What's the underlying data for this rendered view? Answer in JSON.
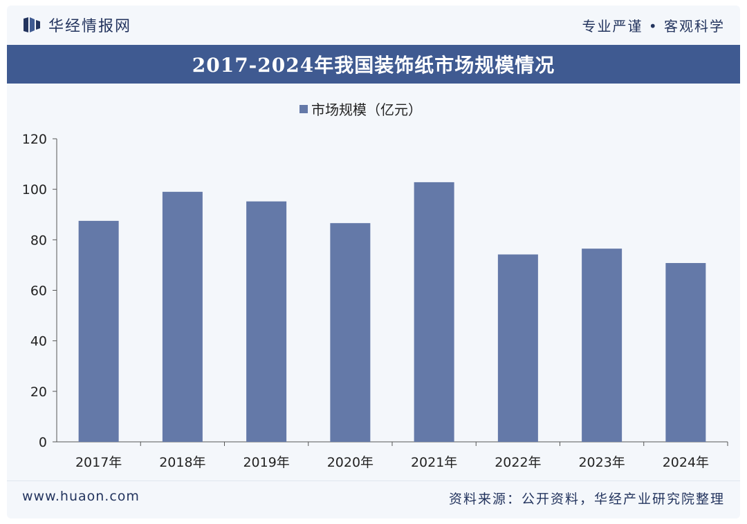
{
  "header": {
    "brand_name": "华经情报网",
    "slogan": "专业严谨 • 客观科学"
  },
  "colors": {
    "bar": "#6479a8",
    "title_band": "#3f5a91",
    "text_dark": "#23345e"
  },
  "chart_data": {
    "type": "bar",
    "title": "2017-2024年我国装饰纸市场规模情况",
    "categories": [
      "2017年",
      "2018年",
      "2019年",
      "2020年",
      "2021年",
      "2022年",
      "2023年",
      "2024年"
    ],
    "series": [
      {
        "name": "市场规模（亿元）",
        "values": [
          87.5,
          99,
          95.2,
          86.6,
          102.8,
          74.2,
          76.5,
          70.8
        ]
      }
    ],
    "ylim": [
      0,
      120
    ],
    "yticks": [
      0,
      20,
      40,
      60,
      80,
      100,
      120
    ],
    "legend_position": "top-center",
    "grid": false
  },
  "footer": {
    "website": "www.huaon.com",
    "source": "资料来源：公开资料，华经产业研究院整理"
  }
}
